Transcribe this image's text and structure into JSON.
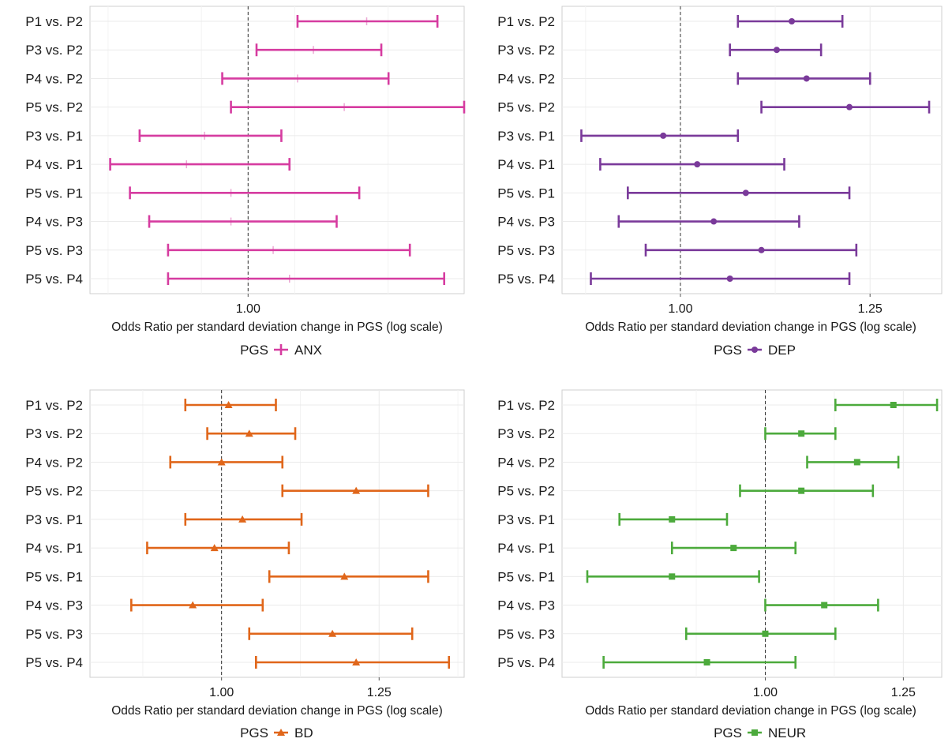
{
  "chart_data": [
    {
      "type": "errorbar",
      "scale": "log",
      "xlabel": "Odds Ratio per standard deviation change in PGS (log scale)",
      "xticks": [
        1.0
      ],
      "xtick_labels": [
        "1.00"
      ],
      "xlim": [
        0.83,
        1.29
      ],
      "reference_line": 1.0,
      "legend": {
        "title": "PGS",
        "label": "ANX",
        "position": "bottom",
        "marker": "vertical-tick"
      },
      "color": "#d63ca0",
      "categories": [
        "P1 vs. P2",
        "P3 vs. P2",
        "P4 vs. P2",
        "P5 vs. P2",
        "P3 vs. P1",
        "P4 vs. P1",
        "P5 vs. P1",
        "P4 vs. P3",
        "P5 vs. P3",
        "P5 vs. P4"
      ],
      "estimate": [
        1.15,
        1.08,
        1.06,
        1.12,
        0.95,
        0.93,
        0.98,
        0.98,
        1.03,
        1.05
      ],
      "lower": [
        1.06,
        1.01,
        0.97,
        0.98,
        0.88,
        0.85,
        0.87,
        0.89,
        0.91,
        0.91
      ],
      "upper": [
        1.25,
        1.17,
        1.18,
        1.29,
        1.04,
        1.05,
        1.14,
        1.11,
        1.21,
        1.26
      ]
    },
    {
      "type": "errorbar",
      "scale": "log",
      "xlabel": "Odds Ratio per standard deviation change in PGS (log scale)",
      "xticks": [
        1.0,
        1.25
      ],
      "xtick_labels": [
        "1.00",
        "1.25"
      ],
      "xlim": [
        0.87,
        1.36
      ],
      "reference_line": 1.0,
      "legend": {
        "title": "PGS",
        "label": "DEP",
        "position": "bottom",
        "marker": "circle"
      },
      "color": "#7a3a9a",
      "categories": [
        "P1 vs. P2",
        "P3 vs. P2",
        "P4 vs. P2",
        "P5 vs. P2",
        "P3 vs. P1",
        "P4 vs. P1",
        "P5 vs. P1",
        "P4 vs. P3",
        "P5 vs. P3",
        "P5 vs. P4"
      ],
      "estimate": [
        1.14,
        1.12,
        1.16,
        1.22,
        0.98,
        1.02,
        1.08,
        1.04,
        1.1,
        1.06
      ],
      "lower": [
        1.07,
        1.06,
        1.07,
        1.1,
        0.89,
        0.91,
        0.94,
        0.93,
        0.96,
        0.9
      ],
      "upper": [
        1.21,
        1.18,
        1.25,
        1.34,
        1.07,
        1.13,
        1.22,
        1.15,
        1.23,
        1.22
      ]
    },
    {
      "type": "errorbar",
      "scale": "log",
      "xlabel": "Odds Ratio per standard deviation change in PGS (log scale)",
      "xticks": [
        1.0,
        1.25
      ],
      "xtick_labels": [
        "1.00",
        "1.25"
      ],
      "xlim": [
        0.83,
        1.41
      ],
      "reference_line": 1.0,
      "legend": {
        "title": "PGS",
        "label": "BD",
        "position": "bottom",
        "marker": "triangle"
      },
      "color": "#e0661a",
      "categories": [
        "P1 vs. P2",
        "P3 vs. P2",
        "P4 vs. P2",
        "P5 vs. P2",
        "P3 vs. P1",
        "P4 vs. P1",
        "P5 vs. P1",
        "P4 vs. P3",
        "P5 vs. P3",
        "P5 vs. P4"
      ],
      "estimate": [
        1.01,
        1.04,
        1.0,
        1.21,
        1.03,
        0.99,
        1.19,
        0.96,
        1.17,
        1.21
      ],
      "lower": [
        0.95,
        0.98,
        0.93,
        1.09,
        0.95,
        0.9,
        1.07,
        0.88,
        1.04,
        1.05
      ],
      "upper": [
        1.08,
        1.11,
        1.09,
        1.34,
        1.12,
        1.1,
        1.34,
        1.06,
        1.31,
        1.38
      ]
    },
    {
      "type": "errorbar",
      "scale": "log",
      "xlabel": "Odds Ratio per standard deviation change in PGS (log scale)",
      "xticks": [
        1.0,
        1.25
      ],
      "xtick_labels": [
        "1.00",
        "1.25"
      ],
      "xlim": [
        0.72,
        1.33
      ],
      "reference_line": 1.0,
      "legend": {
        "title": "PGS",
        "label": "NEUR",
        "position": "bottom",
        "marker": "square"
      },
      "color": "#4caa3c",
      "categories": [
        "P1 vs. P2",
        "P3 vs. P2",
        "P4 vs. P2",
        "P5 vs. P2",
        "P3 vs. P1",
        "P4 vs. P1",
        "P5 vs. P1",
        "P4 vs. P3",
        "P5 vs. P3",
        "P5 vs. P4"
      ],
      "estimate": [
        1.23,
        1.06,
        1.16,
        1.06,
        0.86,
        0.95,
        0.86,
        1.1,
        1.0,
        0.91
      ],
      "lower": [
        1.12,
        1.0,
        1.07,
        0.96,
        0.79,
        0.86,
        0.75,
        1.0,
        0.88,
        0.77
      ],
      "upper": [
        1.32,
        1.12,
        1.24,
        1.19,
        0.94,
        1.05,
        0.99,
        1.2,
        1.12,
        1.05
      ]
    }
  ]
}
